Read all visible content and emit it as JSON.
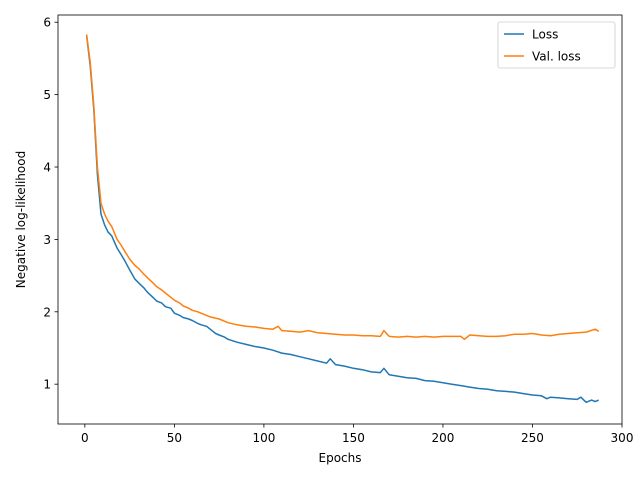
{
  "chart_data": {
    "type": "line",
    "title": "",
    "xlabel": "Epochs",
    "ylabel": "Negative log-likelihood",
    "xlim": [
      -15,
      300
    ],
    "ylim": [
      0.45,
      6.1
    ],
    "xticks": [
      0,
      50,
      100,
      150,
      200,
      250,
      300
    ],
    "yticks": [
      1,
      2,
      3,
      4,
      5,
      6
    ],
    "grid": false,
    "legend_position": "top-right",
    "series": [
      {
        "name": "Loss",
        "color": "#1f77b4",
        "x": [
          1,
          3,
          5,
          7,
          9,
          11,
          13,
          15,
          18,
          20,
          22,
          25,
          28,
          30,
          33,
          35,
          38,
          40,
          43,
          45,
          48,
          50,
          53,
          55,
          58,
          60,
          63,
          65,
          68,
          70,
          73,
          75,
          78,
          80,
          85,
          90,
          95,
          100,
          105,
          110,
          115,
          120,
          125,
          130,
          135,
          137,
          140,
          145,
          150,
          155,
          160,
          165,
          167,
          170,
          175,
          180,
          185,
          190,
          195,
          200,
          205,
          210,
          215,
          220,
          225,
          230,
          235,
          240,
          245,
          250,
          255,
          258,
          260,
          265,
          270,
          275,
          277,
          280,
          283,
          285,
          287
        ],
        "y": [
          5.82,
          5.4,
          4.8,
          3.9,
          3.35,
          3.2,
          3.1,
          3.05,
          2.88,
          2.8,
          2.72,
          2.58,
          2.45,
          2.4,
          2.33,
          2.27,
          2.2,
          2.15,
          2.12,
          2.07,
          2.05,
          1.98,
          1.95,
          1.92,
          1.9,
          1.88,
          1.84,
          1.82,
          1.8,
          1.76,
          1.7,
          1.68,
          1.65,
          1.62,
          1.58,
          1.55,
          1.52,
          1.5,
          1.47,
          1.43,
          1.41,
          1.38,
          1.35,
          1.32,
          1.29,
          1.35,
          1.27,
          1.25,
          1.22,
          1.2,
          1.17,
          1.16,
          1.22,
          1.13,
          1.11,
          1.09,
          1.08,
          1.05,
          1.04,
          1.02,
          1.0,
          0.98,
          0.96,
          0.94,
          0.93,
          0.91,
          0.9,
          0.89,
          0.87,
          0.85,
          0.84,
          0.8,
          0.82,
          0.81,
          0.8,
          0.79,
          0.82,
          0.75,
          0.78,
          0.76,
          0.78
        ]
      },
      {
        "name": "Val. loss",
        "color": "#ff7f0e",
        "x": [
          1,
          3,
          5,
          7,
          9,
          11,
          13,
          15,
          18,
          20,
          22,
          25,
          28,
          30,
          33,
          35,
          38,
          40,
          43,
          45,
          48,
          50,
          53,
          55,
          58,
          60,
          63,
          65,
          68,
          70,
          75,
          80,
          85,
          90,
          95,
          100,
          105,
          108,
          110,
          115,
          120,
          125,
          130,
          135,
          140,
          145,
          150,
          155,
          160,
          165,
          167,
          170,
          175,
          180,
          185,
          190,
          195,
          200,
          205,
          210,
          212,
          215,
          220,
          225,
          230,
          235,
          240,
          245,
          250,
          255,
          260,
          265,
          270,
          275,
          280,
          285,
          287
        ],
        "y": [
          5.83,
          5.45,
          4.85,
          4.0,
          3.5,
          3.35,
          3.25,
          3.18,
          3.0,
          2.93,
          2.85,
          2.73,
          2.64,
          2.6,
          2.52,
          2.47,
          2.4,
          2.35,
          2.3,
          2.26,
          2.2,
          2.16,
          2.12,
          2.08,
          2.05,
          2.02,
          2.0,
          1.98,
          1.95,
          1.93,
          1.9,
          1.85,
          1.82,
          1.8,
          1.79,
          1.77,
          1.76,
          1.8,
          1.74,
          1.73,
          1.72,
          1.74,
          1.71,
          1.7,
          1.69,
          1.68,
          1.68,
          1.67,
          1.67,
          1.66,
          1.74,
          1.66,
          1.65,
          1.66,
          1.65,
          1.66,
          1.65,
          1.66,
          1.66,
          1.66,
          1.62,
          1.68,
          1.67,
          1.66,
          1.66,
          1.67,
          1.69,
          1.69,
          1.7,
          1.68,
          1.67,
          1.69,
          1.7,
          1.71,
          1.72,
          1.76,
          1.73
        ]
      }
    ]
  }
}
